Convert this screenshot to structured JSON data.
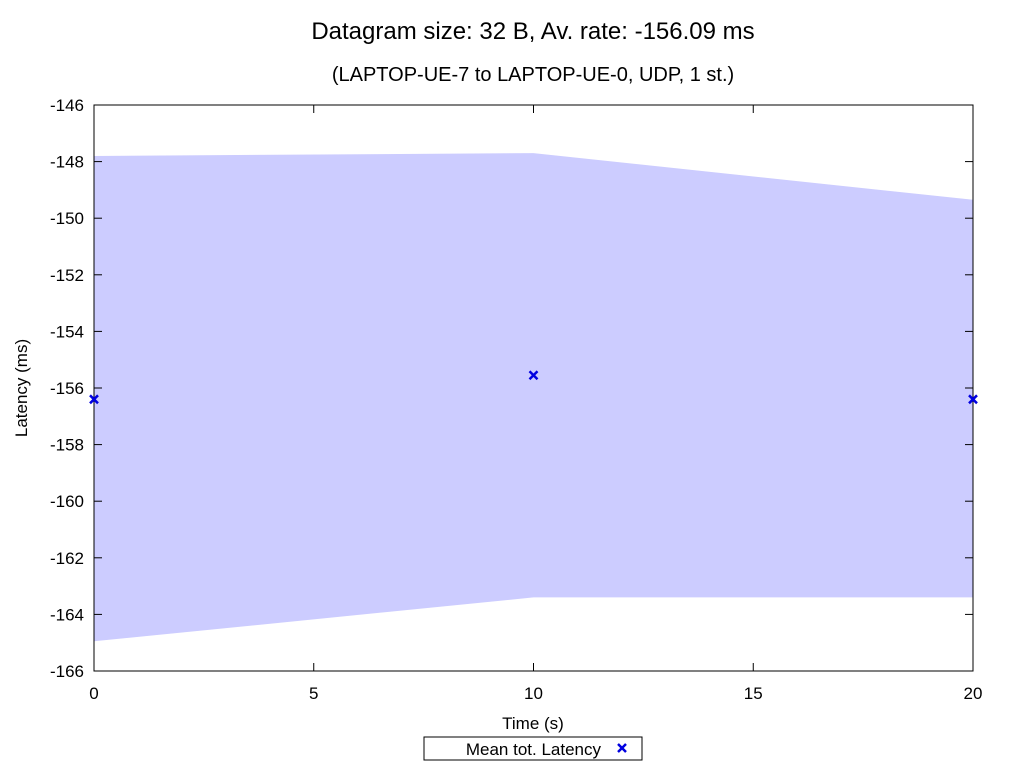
{
  "chart_data": {
    "type": "area",
    "title": "Datagram size: 32 B, Av. rate: -156.09 ms",
    "subtitle": "(LAPTOP-UE-7 to LAPTOP-UE-0, UDP, 1 st.)",
    "xlabel": "Time (s)",
    "ylabel": "Latency (ms)",
    "xlim": [
      0,
      20
    ],
    "ylim": [
      -166,
      -146
    ],
    "xticks": [
      0,
      5,
      10,
      15,
      20
    ],
    "yticks": [
      -146,
      -148,
      -150,
      -152,
      -154,
      -156,
      -158,
      -160,
      -162,
      -164,
      -166
    ],
    "grid": false,
    "legend_position": "bottom-center",
    "band": {
      "x": [
        0,
        10,
        20
      ],
      "upper": [
        -147.8,
        -147.7,
        -149.35
      ],
      "lower": [
        -164.95,
        -163.4,
        -163.4
      ],
      "color": "#ccccff"
    },
    "series": [
      {
        "name": "Mean tot. Latency",
        "marker": "x",
        "color": "#0000e0",
        "x": [
          0,
          10,
          20
        ],
        "y": [
          -156.4,
          -155.55,
          -156.4
        ]
      }
    ]
  }
}
